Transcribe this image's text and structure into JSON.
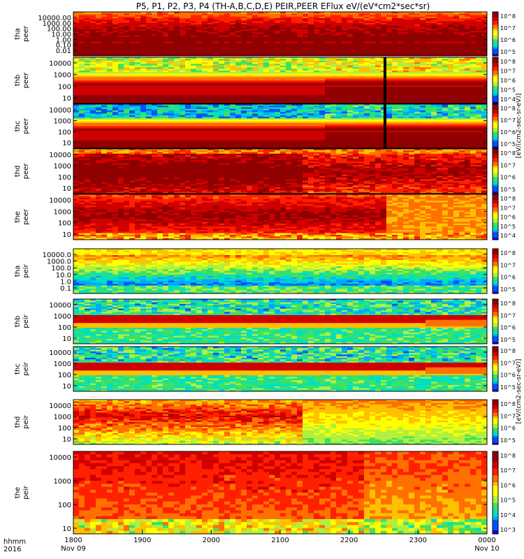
{
  "chart_data": {
    "type": "heatmap",
    "title": "P5, P1, P2, P3, P4 (TH-A,B,C,D,E) PEIR,PEER EFlux eV/(eV*cm2*sec*sr)",
    "x": {
      "start_label_line1": "hhmm",
      "start_label_line2": "2016",
      "ticks": [
        {
          "value": "1800",
          "sub": "Nov 09"
        },
        {
          "value": "1900",
          "sub": ""
        },
        {
          "value": "2000",
          "sub": ""
        },
        {
          "value": "2100",
          "sub": ""
        },
        {
          "value": "2200",
          "sub": ""
        },
        {
          "value": "2300",
          "sub": ""
        },
        {
          "value": "0000",
          "sub": "Nov 10"
        }
      ]
    },
    "colorbar_ticks": [
      "10^8",
      "10^7",
      "10^6",
      "10^5",
      "10^4",
      "10^3"
    ],
    "colorbar_label_peer": "[eV/(cm2-sec-sr-eV)]",
    "colorbar_label_peir": "[eV/(cm2-sec-sr-eV)]",
    "panels": [
      {
        "label1": "tha",
        "label2": "peer",
        "yticks": [
          "10000.00",
          "1000.00",
          "100.00",
          "10.00",
          "1.00",
          "0.10",
          "0.01"
        ],
        "style": "peer_tha"
      },
      {
        "label1": "thb",
        "label2": "peer",
        "yticks": [
          "10000",
          "1000",
          "100",
          "10"
        ],
        "style": "peer_band"
      },
      {
        "label1": "thc",
        "label2": "peer",
        "yticks": [
          "10000",
          "1000",
          "100",
          "10"
        ],
        "style": "peer_band_noisy"
      },
      {
        "label1": "thd",
        "label2": "peer",
        "yticks": [
          "10000",
          "1000",
          "100",
          "10"
        ],
        "style": "peer_hot"
      },
      {
        "label1": "the",
        "label2": "peer",
        "yticks": [
          "10000",
          "1000",
          "100",
          "10"
        ],
        "style": "peer_hot2"
      },
      {
        "label1": "tha",
        "label2": "peir",
        "yticks": [
          "10000.0",
          "1000.0",
          "100.0",
          "10.0",
          "1.0",
          "0.1"
        ],
        "style": "peir_tha"
      },
      {
        "label1": "thb",
        "label2": "peir",
        "yticks": [
          "10000",
          "1000",
          "100",
          "10"
        ],
        "style": "peir_band"
      },
      {
        "label1": "thc",
        "label2": "peir",
        "yticks": [
          "10000",
          "1000",
          "100",
          "10"
        ],
        "style": "peir_band"
      },
      {
        "label1": "thd",
        "label2": "peir",
        "yticks": [
          "10000",
          "1000",
          "100",
          "10"
        ],
        "style": "peir_hot"
      },
      {
        "label1": "the",
        "label2": "peir",
        "yticks": [
          "10000",
          "1000",
          "100",
          "10"
        ],
        "style": "peir_the"
      }
    ]
  }
}
